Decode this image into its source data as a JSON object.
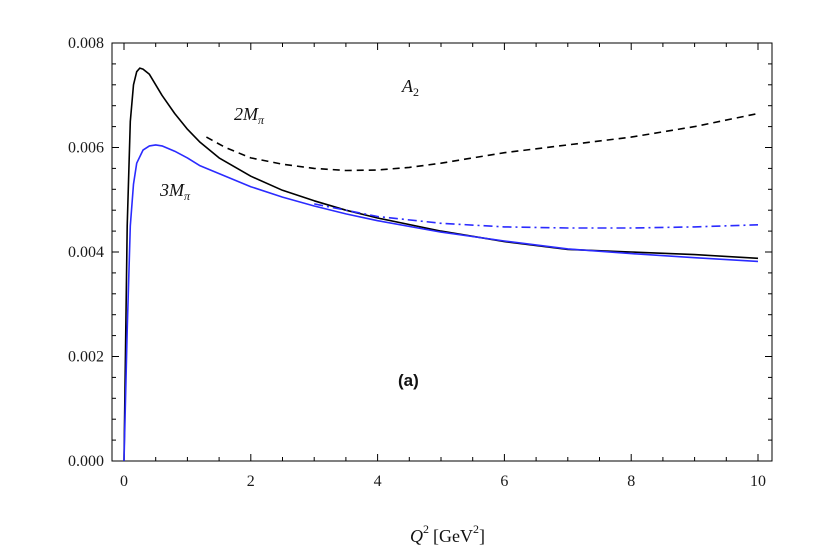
{
  "chart_data": {
    "type": "line",
    "xlim": [
      0,
      10
    ],
    "ylim": [
      0,
      0.008
    ],
    "x_ticks": [
      "0",
      "2",
      "4",
      "6",
      "8",
      "10"
    ],
    "y_ticks": [
      "0.000",
      "0.002",
      "0.004",
      "0.006",
      "0.008"
    ],
    "xlabel": {
      "main": "Q",
      "sup": "2",
      "unit_pre": "[GeV",
      "unit_sup": "2",
      "unit_post": "]"
    },
    "grid": false,
    "annotations": {
      "label_2m": {
        "main": "2M",
        "sub": "π"
      },
      "label_3m": {
        "main": "3M",
        "sub": "π"
      },
      "label_a2": {
        "main": "A",
        "sub": "2"
      },
      "panel": "(a)"
    },
    "series": [
      {
        "style": "solid",
        "color": "#000000",
        "x": [
          0,
          0.05,
          0.1,
          0.15,
          0.2,
          0.25,
          0.3,
          0.4,
          0.5,
          0.6,
          0.8,
          1.0,
          1.2,
          1.5,
          2.0,
          2.5,
          3.0,
          3.5,
          4.0,
          5.0,
          6.0,
          7.0,
          8.0,
          9.0,
          10.0
        ],
        "y": [
          0,
          0.0045,
          0.0065,
          0.0072,
          0.00745,
          0.00752,
          0.0075,
          0.0074,
          0.0072,
          0.007,
          0.00665,
          0.00635,
          0.0061,
          0.0058,
          0.00545,
          0.00518,
          0.00498,
          0.0048,
          0.00465,
          0.0044,
          0.0042,
          0.00405,
          0.004,
          0.00395,
          0.00388
        ]
      },
      {
        "style": "dashed",
        "color": "#000000",
        "x": [
          1.3,
          1.6,
          2.0,
          2.5,
          3.0,
          3.5,
          4.0,
          4.5,
          5.0,
          5.5,
          6.0,
          7.0,
          8.0,
          9.0,
          10.0
        ],
        "y": [
          0.0062,
          0.006,
          0.0058,
          0.00568,
          0.0056,
          0.00556,
          0.00557,
          0.00562,
          0.0057,
          0.0058,
          0.0059,
          0.00605,
          0.0062,
          0.0064,
          0.00665
        ]
      },
      {
        "style": "solid",
        "color": "#2b2bff",
        "x": [
          0,
          0.05,
          0.1,
          0.15,
          0.2,
          0.3,
          0.4,
          0.5,
          0.6,
          0.8,
          1.0,
          1.2,
          1.5,
          2.0,
          2.5,
          3.0,
          3.5,
          4.0,
          5.0,
          6.0,
          7.0,
          8.0,
          9.0,
          10.0
        ],
        "y": [
          0,
          0.0025,
          0.0045,
          0.0053,
          0.0057,
          0.00595,
          0.00603,
          0.00605,
          0.00603,
          0.00593,
          0.0058,
          0.00565,
          0.0055,
          0.00525,
          0.00505,
          0.00488,
          0.00473,
          0.0046,
          0.00438,
          0.00421,
          0.00406,
          0.00397,
          0.00389,
          0.00382
        ]
      },
      {
        "style": "dashdot",
        "color": "#2b2bff",
        "x": [
          3.0,
          4.0,
          5.0,
          6.0,
          7.0,
          8.0,
          9.0,
          10.0
        ],
        "y": [
          0.00492,
          0.00468,
          0.00455,
          0.00448,
          0.00446,
          0.00446,
          0.00448,
          0.00452
        ]
      }
    ]
  }
}
